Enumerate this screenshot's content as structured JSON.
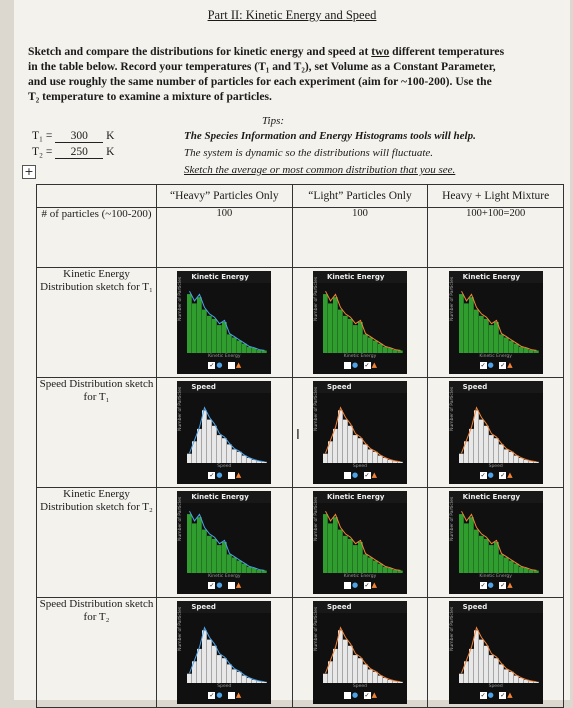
{
  "title": "Part II: Kinetic Energy and Speed",
  "intro": {
    "line1a": "Sketch and compare the distributions for kinetic energy and speed at ",
    "line1u": "two",
    "line1b": " different temperatures",
    "line2": "in the table below. Record your temperatures (T₁ and T₂), set Volume as a Constant Parameter,",
    "line3": "and use roughly the same number of particles for each experiment (aim for ~100-200). Use the",
    "line4": "T₂ temperature to examine a mixture of particles."
  },
  "tips_label": "Tips:",
  "temps": {
    "t1_label": "T₁ =",
    "t1_value": "300",
    "t1_unit": "K",
    "t2_label": "T₂ =",
    "t2_value": "250",
    "t2_unit": "K"
  },
  "tips": [
    "The Species Information and Energy Histograms tools will help.",
    "The system is dynamic so the distributions will fluctuate.",
    "Sketch the average or most common distribution that you see."
  ],
  "table": {
    "headers": [
      "",
      "“Heavy” Particles Only",
      "“Light” Particles Only",
      "Heavy + Light Mixture"
    ],
    "rows": [
      {
        "label": "# of particles (~100-200)"
      },
      {
        "label": "Kinetic Energy Distribution sketch for T₁"
      },
      {
        "label": "Speed Distribution sketch for T₁"
      },
      {
        "label": "Kinetic Energy Distribution sketch for T₂"
      },
      {
        "label": "Speed Distribution sketch for T₂"
      }
    ],
    "counts": [
      "100",
      "100",
      "100+100=200"
    ]
  },
  "panel_text": {
    "ke_title": "Kinetic Energy",
    "speed_title": "Speed",
    "ke_xlabel": "Kinetic Energy",
    "speed_xlabel": "Speed",
    "ylabel": "Number of Particles"
  },
  "colors": {
    "green_bars": "#2f9e2f",
    "white_bars": "#e8e8e8",
    "heavy_line": "#4fa3e8",
    "light_line": "#f2843a"
  }
}
